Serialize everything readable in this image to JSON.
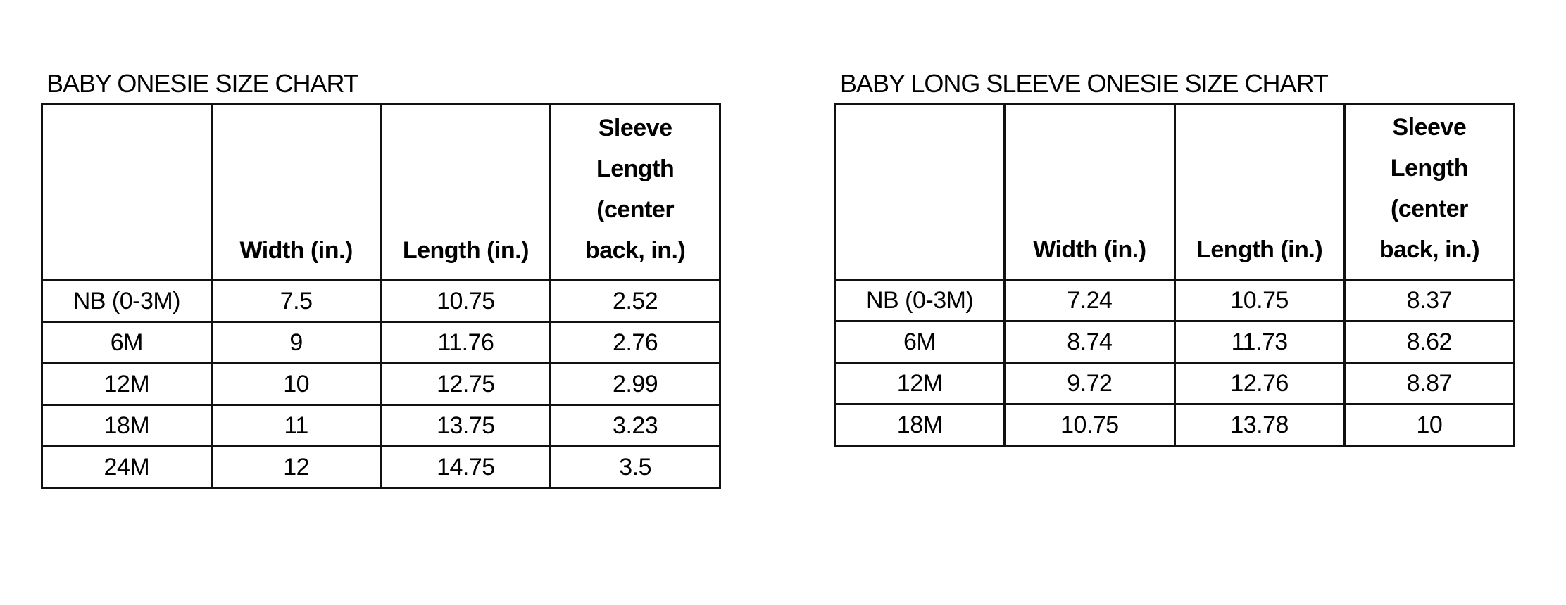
{
  "charts": [
    {
      "title": "BABY ONESIE SIZE CHART",
      "headers": [
        "",
        "Width (in.)",
        "Length (in.)",
        "Sleeve Length (center back, in.)"
      ],
      "header_lines": [
        [],
        [
          "Width (in.)"
        ],
        [
          "Length (in.)"
        ],
        [
          "Sleeve",
          "Length",
          "(center",
          "back, in.)"
        ]
      ],
      "rows": [
        [
          "NB (0-3M)",
          "7.5",
          "10.75",
          "2.52"
        ],
        [
          "6M",
          "9",
          "11.76",
          "2.76"
        ],
        [
          "12M",
          "10",
          "12.75",
          "2.99"
        ],
        [
          "18M",
          "11",
          "13.75",
          "3.23"
        ],
        [
          "24M",
          "12",
          "14.75",
          "3.5"
        ]
      ]
    },
    {
      "title": "BABY LONG SLEEVE ONESIE SIZE CHART",
      "headers": [
        "",
        "Width (in.)",
        "Length (in.)",
        "Sleeve Length (center back, in.)"
      ],
      "header_lines": [
        [],
        [
          "Width (in.)"
        ],
        [
          "Length (in.)"
        ],
        [
          "Sleeve",
          "Length",
          "(center",
          "back, in.)"
        ]
      ],
      "rows": [
        [
          "NB (0-3M)",
          "7.24",
          "10.75",
          "8.37"
        ],
        [
          "6M",
          "8.74",
          "11.73",
          "8.62"
        ],
        [
          "12M",
          "9.72",
          "12.76",
          "8.87"
        ],
        [
          "18M",
          "10.75",
          "13.78",
          "10"
        ]
      ]
    }
  ]
}
